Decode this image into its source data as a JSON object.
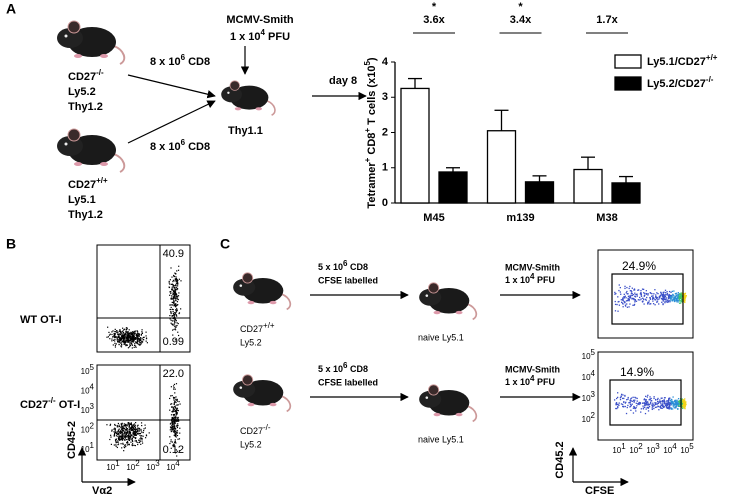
{
  "panel_a": {
    "label": "A",
    "donors": [
      {
        "name": "CD27",
        "sup": "-/-",
        "lines": [
          "Ly5.2",
          "Thy1.2"
        ]
      },
      {
        "name": "CD27",
        "sup": "+/+",
        "lines": [
          "Ly5.1",
          "Thy1.2"
        ]
      }
    ],
    "transfer": [
      {
        "text": "8 x 10",
        "sup": "6",
        "post": " CD8"
      },
      {
        "text": "8 x 10",
        "sup": "6",
        "post": " CD8"
      }
    ],
    "infection": {
      "line1": "MCMV-Smith",
      "text": "1 x 10",
      "sup": "4",
      "post": " PFU"
    },
    "recipient": "Thy1.1",
    "timepoint": "day 8",
    "chart": {
      "type": "bar",
      "y_label": [
        {
          "text": "Tetramer"
        },
        {
          "text": "+",
          "sup": true
        },
        {
          "text": " CD8"
        },
        {
          "text": "+",
          "sup": true
        },
        {
          "text": " T cells (x10"
        },
        {
          "text": "5",
          "sup": true
        },
        {
          "text": ")"
        }
      ],
      "categories": [
        "M45",
        "m139",
        "M38"
      ],
      "series": [
        {
          "name": "Ly5.1/CD27",
          "name_sup": "+/+",
          "color": "#ffffff",
          "values": [
            3.25,
            2.05,
            0.95
          ],
          "errors": [
            0.28,
            0.58,
            0.35
          ]
        },
        {
          "name": "Ly5.2/CD27",
          "name_sup": "-/-",
          "color": "#000000",
          "values": [
            0.88,
            0.6,
            0.57
          ],
          "errors": [
            0.12,
            0.17,
            0.18
          ]
        }
      ],
      "ylim": [
        0,
        4
      ],
      "yticks": [
        0,
        1,
        2,
        3,
        4
      ],
      "annotations": [
        {
          "fold": "3.6x",
          "star": "*"
        },
        {
          "fold": "3.4x",
          "star": "*"
        },
        {
          "fold": "1.7x"
        }
      ]
    }
  },
  "panel_b": {
    "label": "B",
    "plots": [
      {
        "label": {
          "name": "WT OT-I"
        },
        "upper": "40.9",
        "lower": "0.99"
      },
      {
        "label": {
          "name": "CD27",
          "sup": "-/-",
          "post": " OT-I"
        },
        "upper": "22.0",
        "lower": "0.12"
      }
    ],
    "y_axis": "CD45-2",
    "x_axis": "Vα2",
    "tick_base": "10",
    "yticks": [
      "5",
      "4",
      "3",
      "2",
      "1"
    ],
    "xticks": [
      "1",
      "2",
      "3",
      "4"
    ]
  },
  "panel_c": {
    "label": "C",
    "rows": [
      {
        "donor": {
          "name": "CD27",
          "sup": "+/+",
          "line": "Ly5.2"
        },
        "transfer": {
          "text": "5 x 10",
          "sup": "6",
          "post": " CD8",
          "line2": "CFSE labelled"
        },
        "recipient": "naive Ly5.1",
        "infection": {
          "line1": "MCMV-Smith",
          "text": "1 x 10",
          "sup": "4",
          "post": " PFU"
        },
        "gate": "24.9%"
      },
      {
        "donor": {
          "name": "CD27",
          "sup": "-/-",
          "line": "Ly5.2"
        },
        "transfer": {
          "text": "5 x 10",
          "sup": "6",
          "post": " CD8",
          "line2": "CFSE labelled"
        },
        "recipient": "naive Ly5.1",
        "infection": {
          "line1": "MCMV-Smith",
          "text": "1 x 10",
          "sup": "4",
          "post": " PFU"
        },
        "gate": "14.9%"
      }
    ],
    "y_axis": "CD45.2",
    "x_axis": "CFSE",
    "tick_base": "10",
    "yticks": [
      "5",
      "4",
      "3",
      "2"
    ],
    "xticks": [
      "1",
      "2",
      "3",
      "4",
      "5"
    ]
  }
}
